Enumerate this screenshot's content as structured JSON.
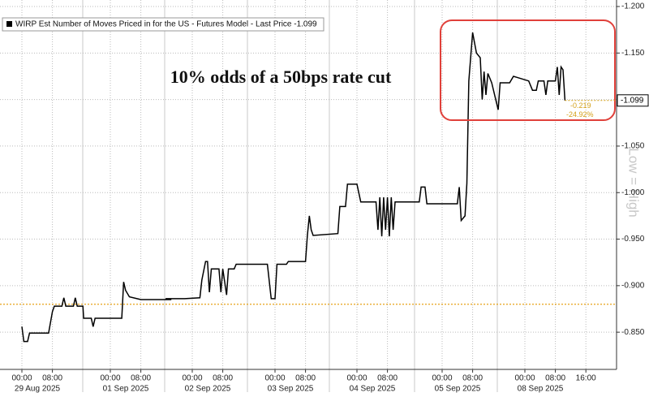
{
  "chart_data": {
    "type": "line",
    "annotation": "10% odds of a 50bps rate cut",
    "side_label": "Low = High",
    "days": [
      "29 Aug 2025",
      "01 Sep 2025",
      "02 Sep 2025",
      "03 Sep 2025",
      "04 Sep 2025",
      "05 Sep 2025",
      "08 Sep 2025"
    ],
    "x": [
      "29 Aug 2025 00:00",
      "29 Aug 2025 00:30",
      "29 Aug 2025 01:30",
      "29 Aug 2025 02:00",
      "29 Aug 2025 07:00",
      "29 Aug 2025 08:00",
      "29 Aug 2025 08:30",
      "29 Aug 2025 10:30",
      "29 Aug 2025 11:00",
      "29 Aug 2025 11:30",
      "29 Aug 2025 13:30",
      "29 Aug 2025 14:00",
      "29 Aug 2025 14:30",
      "29 Aug 2025 16:00",
      "29 Aug 2025 17:00",
      "29 Aug 2025 19:00",
      "29 Aug 2025 19:30",
      "29 Aug 2025 20:00",
      "01 Sep 2025 03:00",
      "01 Sep 2025 03:30",
      "01 Sep 2025 04:00",
      "01 Sep 2025 05:00",
      "01 Sep 2025 08:00",
      "01 Sep 2025 16:00",
      "01 Sep 2025 17:00",
      "01 Sep 2025 22:00",
      "02 Sep 2025 02:00",
      "02 Sep 2025 02:30",
      "02 Sep 2025 03:30",
      "02 Sep 2025 04:00",
      "02 Sep 2025 04:30",
      "02 Sep 2025 05:00",
      "02 Sep 2025 07:00",
      "02 Sep 2025 07:30",
      "02 Sep 2025 08:00",
      "02 Sep 2025 09:00",
      "02 Sep 2025 09:30",
      "02 Sep 2025 11:00",
      "02 Sep 2025 11:30",
      "02 Sep 2025 22:00",
      "02 Sep 2025 23:00",
      "03 Sep 2025 00:00",
      "03 Sep 2025 00:30",
      "03 Sep 2025 03:00",
      "03 Sep 2025 03:30",
      "03 Sep 2025 08:00",
      "03 Sep 2025 08:30",
      "03 Sep 2025 09:00",
      "03 Sep 2025 09:30",
      "03 Sep 2025 10:00",
      "03 Sep 2025 19:00",
      "03 Sep 2025 19:30",
      "03 Sep 2025 21:00",
      "03 Sep 2025 21:30",
      "04 Sep 2025 00:00",
      "04 Sep 2025 01:00",
      "04 Sep 2025 05:00",
      "04 Sep 2025 05:30",
      "04 Sep 2025 06:00",
      "04 Sep 2025 06:30",
      "04 Sep 2025 07:00",
      "04 Sep 2025 07:30",
      "04 Sep 2025 08:00",
      "04 Sep 2025 08:30",
      "04 Sep 2025 09:00",
      "04 Sep 2025 09:30",
      "04 Sep 2025 10:00",
      "04 Sep 2025 18:00",
      "04 Sep 2025 18:30",
      "04 Sep 2025 19:30",
      "04 Sep 2025 20:00",
      "05 Sep 2025 04:00",
      "05 Sep 2025 04:30",
      "05 Sep 2025 05:00",
      "05 Sep 2025 06:00",
      "05 Sep 2025 06:30",
      "05 Sep 2025 07:00",
      "05 Sep 2025 08:00",
      "05 Sep 2025 09:00",
      "05 Sep 2025 10:00",
      "05 Sep 2025 10:30",
      "05 Sep 2025 11:00",
      "05 Sep 2025 11:30",
      "05 Sep 2025 12:00",
      "05 Sep 2025 13:00",
      "05 Sep 2025 17:00",
      "05 Sep 2025 17:30",
      "05 Sep 2025 20:00",
      "05 Sep 2025 21:00",
      "08 Sep 2025 01:00",
      "08 Sep 2025 02:00",
      "08 Sep 2025 03:00",
      "08 Sep 2025 03:30",
      "08 Sep 2025 05:00",
      "08 Sep 2025 05:30",
      "08 Sep 2025 06:00",
      "08 Sep 2025 08:00",
      "08 Sep 2025 08:30",
      "08 Sep 2025 09:00",
      "08 Sep 2025 09:30",
      "08 Sep 2025 10:00",
      "08 Sep 2025 10:30"
    ],
    "series": [
      {
        "name": "WIRP Est Number of Moves Priced in for the US - Futures Model - Last Price -1.099",
        "color": "#000000",
        "values": [
          -0.856,
          -0.84,
          -0.84,
          -0.849,
          -0.849,
          -0.872,
          -0.878,
          -0.878,
          -0.887,
          -0.878,
          -0.878,
          -0.887,
          -0.878,
          -0.878,
          -0.865,
          -0.865,
          -0.856,
          -0.865,
          -0.865,
          -0.904,
          -0.895,
          -0.888,
          -0.885,
          -0.885,
          -0.886,
          -0.886,
          -0.887,
          -0.906,
          -0.926,
          -0.926,
          -0.893,
          -0.918,
          -0.918,
          -0.893,
          -0.918,
          -0.89,
          -0.918,
          -0.918,
          -0.923,
          -0.923,
          -0.886,
          -0.886,
          -0.923,
          -0.923,
          -0.926,
          -0.926,
          -0.954,
          -0.975,
          -0.96,
          -0.954,
          -0.956,
          -0.985,
          -0.985,
          -1.009,
          -1.009,
          -0.99,
          -0.99,
          -0.96,
          -0.995,
          -0.953,
          -0.995,
          -0.96,
          -0.995,
          -0.953,
          -0.995,
          -0.96,
          -0.99,
          -0.99,
          -1.006,
          -1.006,
          -0.988,
          -0.988,
          -1.006,
          -0.97,
          -0.975,
          -1.01,
          -1.12,
          -1.172,
          -1.15,
          -1.145,
          -1.1,
          -1.13,
          -1.105,
          -1.128,
          -1.118,
          -1.089,
          -1.118,
          -1.118,
          -1.125,
          -1.12,
          -1.11,
          -1.11,
          -1.12,
          -1.12,
          -1.105,
          -1.12,
          -1.12,
          -1.135,
          -1.105,
          -1.135,
          -1.132,
          -1.099
        ]
      }
    ],
    "xticks": [
      {
        "value": "29 Aug 2025 00:00",
        "label": "00:00"
      },
      {
        "value": "29 Aug 2025 08:00",
        "label": "08:00"
      },
      {
        "value": "01 Sep 2025 00:00",
        "label": "00:00"
      },
      {
        "value": "01 Sep 2025 08:00",
        "label": "08:00"
      },
      {
        "value": "02 Sep 2025 00:00",
        "label": "00:00"
      },
      {
        "value": "02 Sep 2025 08:00",
        "label": "08:00"
      },
      {
        "value": "03 Sep 2025 00:00",
        "label": "00:00"
      },
      {
        "value": "03 Sep 2025 08:00",
        "label": "08:00"
      },
      {
        "value": "04 Sep 2025 00:00",
        "label": "00:00"
      },
      {
        "value": "04 Sep 2025 08:00",
        "label": "08:00"
      },
      {
        "value": "05 Sep 2025 00:00",
        "label": "00:00"
      },
      {
        "value": "05 Sep 2025 08:00",
        "label": "08:00"
      },
      {
        "value": "08 Sep 2025 00:00",
        "label": "00:00"
      },
      {
        "value": "08 Sep 2025 08:00",
        "label": "08:00"
      },
      {
        "value": "08 Sep 2025 16:00",
        "label": "16:00"
      }
    ],
    "ylim": [
      -0.81,
      -1.207
    ],
    "yticks": [
      {
        "value": -1.2,
        "label": "-1.200"
      },
      {
        "value": -1.15,
        "label": "-1.150"
      },
      {
        "value": -1.1,
        "label": "-1.100"
      },
      {
        "value": -1.05,
        "label": "-1.050"
      },
      {
        "value": -1.0,
        "label": "-1.000"
      },
      {
        "value": -0.95,
        "label": "-0.950"
      },
      {
        "value": -0.9,
        "label": "-0.900"
      },
      {
        "value": -0.85,
        "label": "-0.850"
      }
    ],
    "y_axis_side": "right",
    "grid": true,
    "reference_line": {
      "value": -0.88,
      "color": "#e8a317"
    },
    "last_price": -1.099,
    "change": -0.219,
    "change_pct": {
      "value": -24.92,
      "label": "-24.92%"
    },
    "change_color": "#d4a017"
  }
}
